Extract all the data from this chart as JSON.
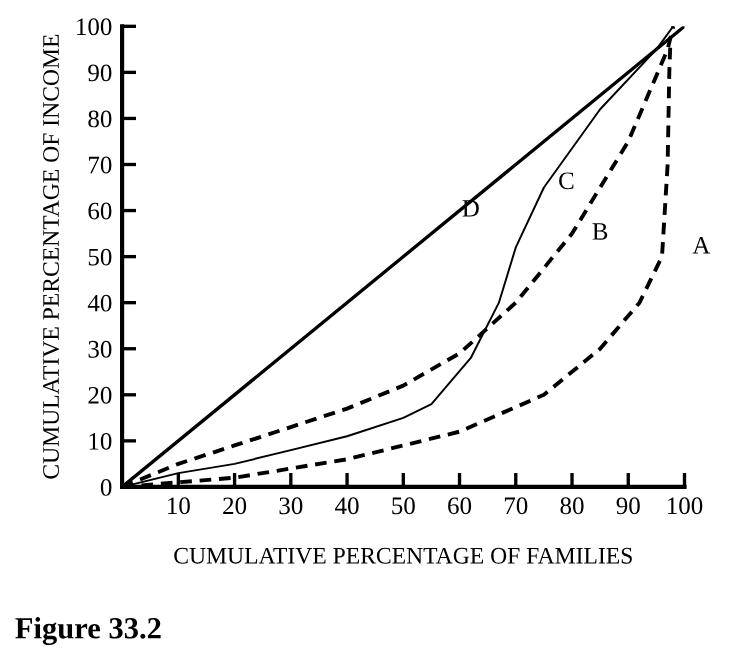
{
  "chart_data": {
    "type": "line",
    "xlabel": "CUMULATIVE PERCENTAGE OF FAMILIES",
    "ylabel": "CUMULATIVE PERCENTAGE OF INCOME",
    "xlim": [
      0,
      100
    ],
    "ylim": [
      0,
      100
    ],
    "xticks": [
      10,
      20,
      30,
      40,
      50,
      60,
      70,
      80,
      90,
      100
    ],
    "yticks": [
      0,
      10,
      20,
      30,
      40,
      50,
      60,
      70,
      80,
      90,
      100
    ],
    "grid": false,
    "legend": false,
    "marker": "none",
    "series": [
      {
        "name": "D",
        "color": "#000000",
        "line_style": "solid",
        "x": [
          0,
          100
        ],
        "values": [
          0,
          100
        ]
      },
      {
        "name": "C",
        "color": "#000000",
        "line_style": "solid",
        "x": [
          0,
          10,
          20,
          30,
          40,
          50,
          55,
          62,
          67,
          70,
          75,
          85,
          95,
          98
        ],
        "values": [
          0,
          3,
          5,
          8,
          11,
          15,
          18,
          28,
          40,
          52,
          65,
          82,
          95,
          100
        ]
      },
      {
        "name": "B",
        "color": "#000000",
        "line_style": "dashed",
        "x": [
          0,
          10,
          20,
          30,
          40,
          50,
          60,
          70,
          80,
          90,
          97,
          98
        ],
        "values": [
          0,
          5,
          9,
          13,
          17,
          22,
          29,
          40,
          55,
          75,
          95,
          100
        ]
      },
      {
        "name": "A",
        "color": "#000000",
        "line_style": "dashed",
        "x": [
          0,
          20,
          40,
          60,
          75,
          85,
          92,
          96,
          97,
          97.3,
          97.5
        ],
        "values": [
          0,
          2,
          6,
          12,
          20,
          30,
          40,
          50,
          70,
          90,
          97
        ]
      }
    ],
    "annotations": [
      "Figure 33.2"
    ]
  }
}
